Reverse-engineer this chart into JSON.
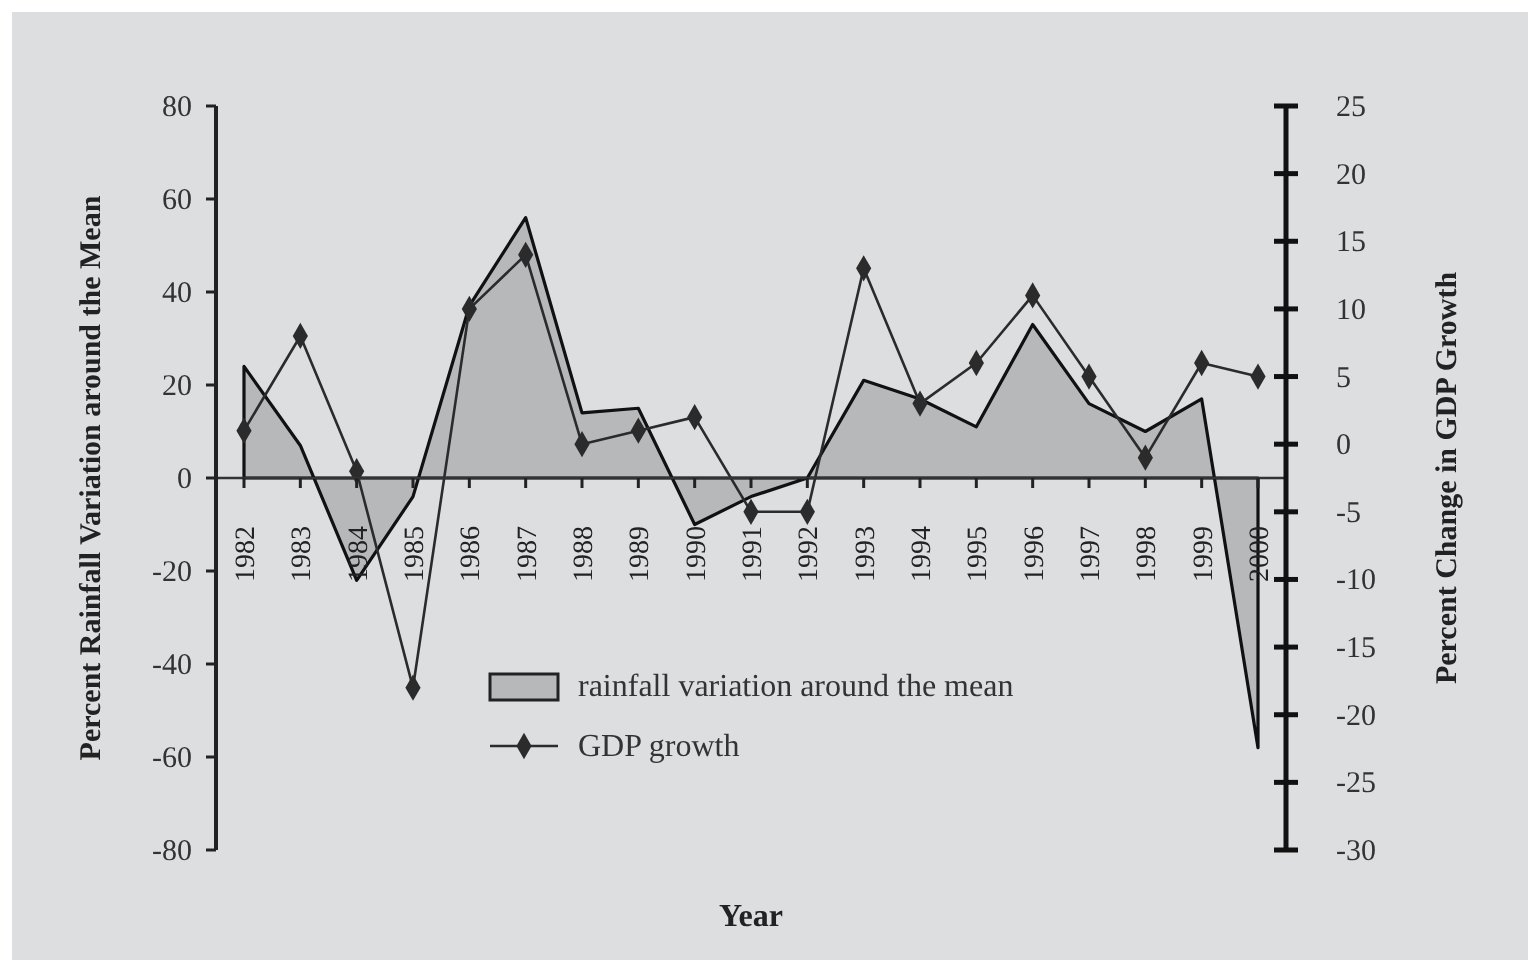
{
  "chart_data": {
    "type": "area",
    "xlabel": "Year",
    "ylabel": "Percent Rainfall Variation around the Mean",
    "y2label": "Percent Change in GDP Growth",
    "categories": [
      "1982",
      "1983",
      "1984",
      "1985",
      "1986",
      "1987",
      "1988",
      "1989",
      "1990",
      "1991",
      "1992",
      "1993",
      "1994",
      "1995",
      "1996",
      "1997",
      "1998",
      "1999",
      "2000"
    ],
    "series": [
      {
        "name": "rainfall variation around the mean",
        "type": "area",
        "color": "#b7b8ba",
        "values": [
          24,
          7,
          -22,
          -4,
          37,
          56,
          14,
          15,
          -10,
          -4,
          0,
          21,
          17,
          11,
          33,
          16,
          10,
          17,
          -58
        ]
      },
      {
        "name": "GDP growth",
        "type": "line",
        "axis": "y2",
        "color": "#2b2b2b",
        "marker": "diamond",
        "values": [
          1,
          8,
          -2,
          -18,
          10,
          14,
          0,
          1,
          2,
          -5,
          -5,
          13,
          3,
          6,
          11,
          5,
          -1,
          6,
          5
        ]
      }
    ],
    "ylim": [
      -80,
      80
    ],
    "yticks": [
      -80,
      -60,
      -40,
      -20,
      0,
      20,
      40,
      60,
      80
    ],
    "y2lim": [
      -30,
      25
    ],
    "y2ticks": [
      -30,
      -25,
      -20,
      -15,
      -10,
      -5,
      0,
      5,
      10,
      15,
      20,
      25
    ],
    "legend": "bottom",
    "grid": false
  }
}
